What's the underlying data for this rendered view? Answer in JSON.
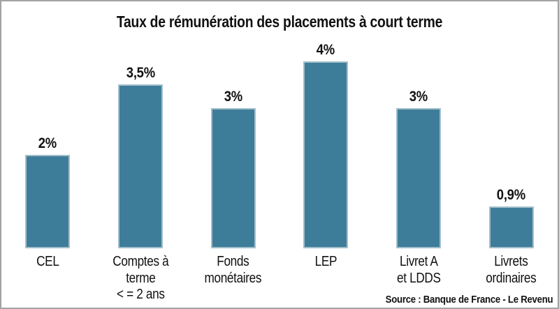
{
  "title": "Taux de rémunération des placements à court terme",
  "source_caption": "Source : Banque de France - Le Revenu",
  "colors": {
    "bar_fill": "#3e7d99",
    "bar_edge": "#a2bfcb",
    "frame_border": "#a3a3a3",
    "background": "#ffffff",
    "text": "#111111"
  },
  "chart_data": {
    "type": "bar",
    "title": "Taux de rémunération des placements à court terme",
    "categories": [
      "CEL",
      "Comptes à terme\n< = 2 ans",
      "Fonds\nmonétaires",
      "LEP",
      "Livret A\net LDDS",
      "Livrets\nordinaires"
    ],
    "values": [
      2,
      3.5,
      3,
      4,
      3,
      0.9
    ],
    "value_labels": [
      "2%",
      "3,5%",
      "3%",
      "4%",
      "3%",
      "0,9%"
    ],
    "xlabel": "",
    "ylabel": "",
    "ylim": [
      0,
      4.4
    ],
    "grid": false,
    "legend": false,
    "bar_color": "#3e7d99",
    "annotation": "Source : Banque de France - Le Revenu"
  }
}
